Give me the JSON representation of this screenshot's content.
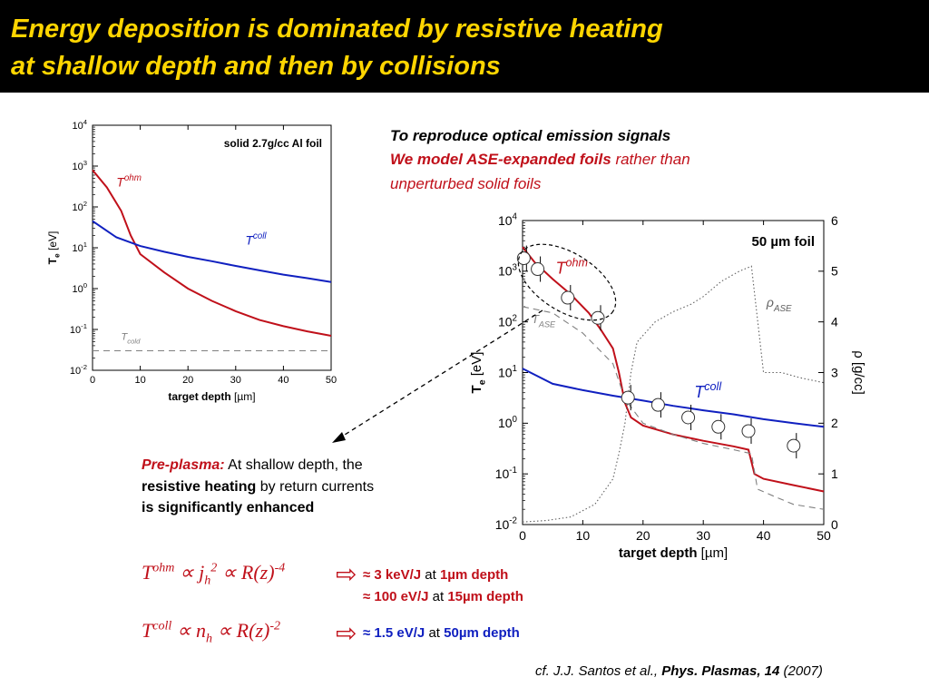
{
  "title": {
    "line1": "Energy deposition is dominated by resistive heating",
    "line2": "at shallow depth and then by collisions"
  },
  "notes": {
    "reproduce_line1": "To reproduce optical emission signals",
    "reproduce_line2_bold": "We model ASE-expanded foils",
    "reproduce_line2_rest": " rather than",
    "reproduce_line3": "unperturbed solid foils",
    "preplasma_label": "Pre-plasma:",
    "preplasma_text1": " At shallow depth, the",
    "preplasma_bold2": "resistive heating",
    "preplasma_text2": " by return currents",
    "preplasma_bold3": "is significantly enhanced"
  },
  "equations": {
    "ohm_T": "T",
    "ohm_sup": "ohm",
    "ohm_prop1": " ∝ j",
    "ohm_sub": "h",
    "ohm_sup2": "2",
    "ohm_prop2": " ∝ R(z)",
    "ohm_sup3": "-4",
    "ohm_result1_bold": "≈ 3 keV/J",
    "ohm_result1_at": " at ",
    "ohm_result1_depth": "1µm depth",
    "ohm_result2_bold": "≈ 100 eV/J",
    "ohm_result2_at": " at ",
    "ohm_result2_depth": "15µm depth",
    "coll_T": "T",
    "coll_sup": "coll",
    "coll_prop1": " ∝ n",
    "coll_sub": "h",
    "coll_prop2": " ∝ R(z)",
    "coll_sup2": "-2",
    "coll_result_bold": "≈ 1.5 eV/J",
    "coll_result_at": " at ",
    "coll_result_depth": "50µm depth",
    "arrow_glyph": "⇨"
  },
  "citation": {
    "authors": "cf. J.J. Santos et al., ",
    "journal": "Phys. Plasmas",
    "volume": ", 14",
    "year": " (2007)"
  },
  "colors": {
    "title_bg": "#000000",
    "title_fg": "#ffd500",
    "red": "#c0101a",
    "blue": "#1020c0",
    "gray": "#808080"
  },
  "chart_data": [
    {
      "type": "line",
      "annotation": "solid 2.7g/cc Al foil",
      "xlabel": "target depth",
      "xlabel_unit": "[µm]",
      "ylabel": "T",
      "ylabel_sub": "e",
      "ylabel_unit": " [eV]",
      "xlim": [
        0,
        50
      ],
      "ylim_log10": [
        -2,
        4
      ],
      "yscale": "log",
      "x_ticks": [
        "0",
        "10",
        "20",
        "30",
        "40",
        "50"
      ],
      "y_tick_exponents": [
        "4",
        "3",
        "2",
        "1",
        "0",
        "-1",
        "-2"
      ],
      "y_tick_base": "10",
      "series": [
        {
          "name": "T",
          "name_sup": "ohm",
          "color": "#c0101a",
          "x": [
            0,
            3,
            6,
            8,
            10,
            15,
            20,
            25,
            30,
            35,
            40,
            45,
            50
          ],
          "y": [
            800,
            300,
            80,
            20,
            7,
            2.5,
            1,
            0.5,
            0.28,
            0.17,
            0.12,
            0.09,
            0.07
          ]
        },
        {
          "name": "T",
          "name_sup": "coll",
          "color": "#1020c0",
          "x": [
            0,
            5,
            10,
            15,
            20,
            25,
            30,
            35,
            40,
            45,
            50
          ],
          "y": [
            45,
            18,
            11,
            8,
            6,
            4.7,
            3.6,
            2.8,
            2.2,
            1.8,
            1.45
          ]
        },
        {
          "name": "T",
          "name_sub": "cold",
          "color": "#808080",
          "dashed": true,
          "x": [
            0,
            50
          ],
          "y": [
            0.03,
            0.03
          ]
        }
      ]
    },
    {
      "type": "line",
      "annotation": "50 µm foil",
      "xlabel": "target depth",
      "xlabel_unit": "[µm]",
      "ylabel": "T",
      "ylabel_sub": "e",
      "ylabel_unit": " [eV]",
      "y2label": "ρ [g/cc]",
      "xlim": [
        0,
        50
      ],
      "ylim_log10": [
        -2,
        4
      ],
      "y2lim": [
        0,
        6
      ],
      "yscale": "log",
      "x_ticks": [
        "0",
        "10",
        "20",
        "30",
        "40",
        "50"
      ],
      "y_tick_exponents": [
        "4",
        "3",
        "2",
        "1",
        "0",
        "-1",
        "-2"
      ],
      "y_tick_base": "10",
      "y2_ticks": [
        "6",
        "5",
        "4",
        "3",
        "2",
        "1",
        "0"
      ],
      "series": [
        {
          "name": "T",
          "name_sup": "ohm",
          "color": "#c0101a",
          "x": [
            0,
            2,
            5,
            8,
            11,
            13,
            15,
            16,
            17,
            18,
            20,
            25,
            30,
            35,
            37.5,
            38.5,
            40,
            45,
            50
          ],
          "y": [
            3000,
            1500,
            700,
            350,
            150,
            70,
            30,
            10,
            2.5,
            1.3,
            0.9,
            0.6,
            0.45,
            0.35,
            0.3,
            0.1,
            0.08,
            0.06,
            0.045
          ]
        },
        {
          "name": "T",
          "name_sup": "coll",
          "color": "#1020c0",
          "x": [
            0,
            5,
            10,
            15,
            20,
            25,
            30,
            35,
            40,
            45,
            50
          ],
          "y": [
            12,
            6,
            4.5,
            3.5,
            2.8,
            2.2,
            1.8,
            1.5,
            1.2,
            1.0,
            0.85
          ]
        },
        {
          "name": "T",
          "name_sub": "ASE",
          "color": "#808080",
          "dashed": true,
          "x": [
            0,
            5,
            10,
            15,
            17,
            20,
            25,
            30,
            35,
            38,
            39,
            42,
            45,
            50
          ],
          "y": [
            200,
            150,
            60,
            15,
            3,
            1.0,
            0.6,
            0.4,
            0.3,
            0.25,
            0.05,
            0.035,
            0.025,
            0.02
          ]
        },
        {
          "name": "ρ",
          "name_sub": "ASE",
          "color": "#606060",
          "dotted": true,
          "axis": "right",
          "x": [
            0,
            4,
            8,
            12,
            15,
            16,
            17,
            18,
            19,
            22,
            25,
            28,
            30,
            33,
            36,
            38,
            40,
            43,
            46,
            50
          ],
          "y": [
            0.05,
            0.08,
            0.15,
            0.4,
            0.9,
            1.4,
            2.0,
            3.0,
            3.6,
            4.0,
            4.2,
            4.35,
            4.5,
            4.8,
            5.0,
            5.1,
            3.0,
            3.0,
            2.9,
            2.8
          ]
        },
        {
          "name": "",
          "color": "#000000",
          "markers": true,
          "x": [
            0.2,
            2.5,
            7.5,
            12.5,
            17.5,
            22.5,
            27.5,
            32.5,
            37.5,
            45
          ],
          "y": [
            1800,
            1100,
            300,
            120,
            3.2,
            2.3,
            1.3,
            0.85,
            0.7,
            0.36
          ]
        }
      ]
    }
  ]
}
